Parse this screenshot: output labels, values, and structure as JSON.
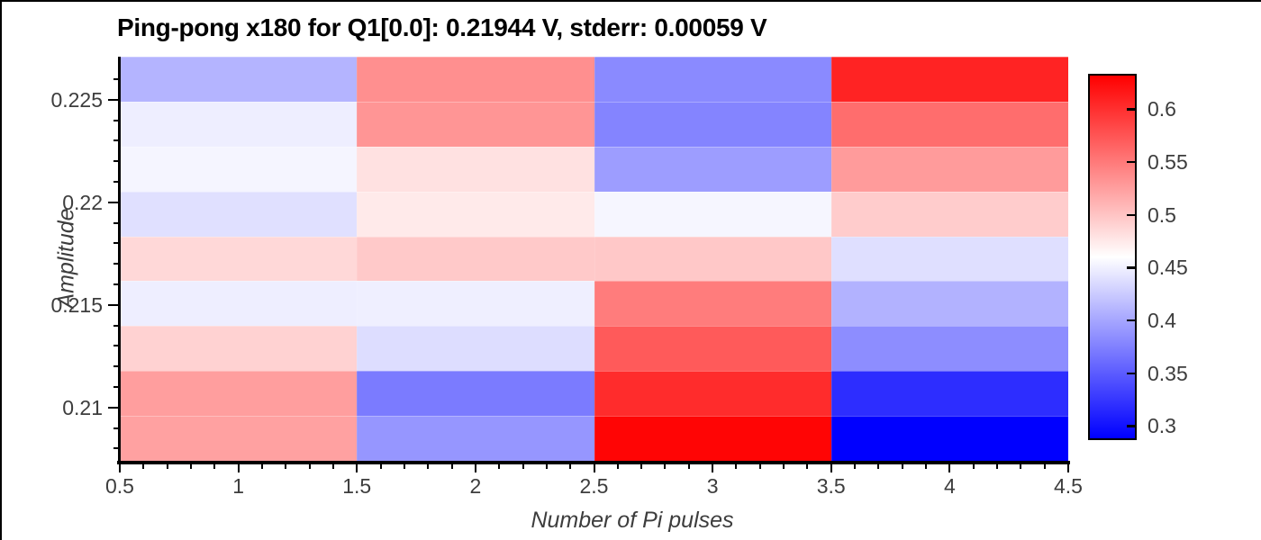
{
  "title": "Ping-pong x180 for Q1[0.0]: 0.21944 V, stderr: 0.00059 V",
  "chart_data": {
    "type": "heatmap",
    "colormap": "bwr",
    "title": "Ping-pong x180 for Q1[0.0]: 0.21944 V, stderr: 0.00059 V",
    "fit_value_V": "0.21944",
    "fit_stderr_V": "0.00059",
    "xlabel": "Number of Pi pulses",
    "ylabel": "Amplitude",
    "x": [
      1,
      2,
      3,
      4
    ],
    "x_range": [
      0.5,
      4.5
    ],
    "x_major_tick_values": [
      0.5,
      1,
      1.5,
      2,
      2.5,
      3,
      3.5,
      4,
      4.5
    ],
    "x_major_tick_labels": [
      "0.5",
      "1",
      "1.5",
      "2",
      "2.5",
      "3",
      "3.5",
      "4",
      "4.5"
    ],
    "x_minor_ticks": {
      "from": 0.5,
      "to": 4.5,
      "step": 0.1
    },
    "y": [
      0.226,
      0.2238,
      0.2216,
      0.2194,
      0.2173,
      0.2151,
      0.2129,
      0.2107,
      0.2085
    ],
    "y_range": [
      0.2074,
      0.2271
    ],
    "y_major_tick_values": [
      0.225,
      0.22,
      0.215,
      0.21
    ],
    "y_major_tick_labels": [
      "0.225",
      "0.22",
      "0.215",
      "0.21"
    ],
    "y_minor_ticks": {
      "from": 0.208,
      "to": 0.226,
      "step": 0.001
    },
    "vmin": 0.29,
    "vmax": 0.6335,
    "colorbar_tick_values": [
      0.6,
      0.55,
      0.5,
      0.45,
      0.4,
      0.35,
      0.3
    ],
    "colorbar_tick_labels": [
      "0.6",
      "0.55",
      "0.5",
      "0.45",
      "0.4",
      "0.35",
      "0.3"
    ],
    "values": [
      [
        0.411,
        0.537,
        0.383,
        0.61
      ],
      [
        0.45,
        0.533,
        0.379,
        0.56
      ],
      [
        0.455,
        0.482,
        0.396,
        0.529
      ],
      [
        0.441,
        0.476,
        0.456,
        0.496
      ],
      [
        0.488,
        0.498,
        0.499,
        0.44
      ],
      [
        0.45,
        0.451,
        0.55,
        0.41
      ],
      [
        0.492,
        0.439,
        0.573,
        0.385
      ],
      [
        0.527,
        0.373,
        0.604,
        0.32
      ],
      [
        0.525,
        0.391,
        0.63,
        0.29
      ]
    ]
  }
}
